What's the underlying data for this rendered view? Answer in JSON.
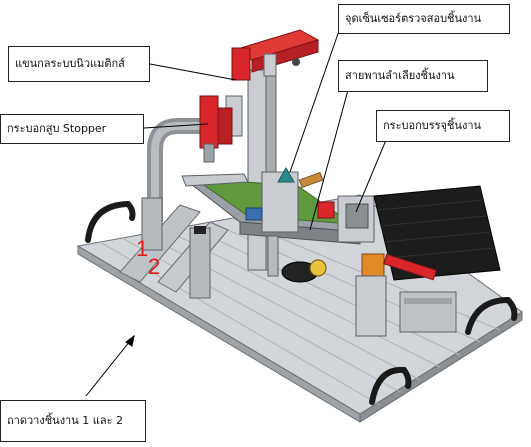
{
  "labels": {
    "pneumatic_arm": "แขนกลระบบนิวแมติกส์",
    "stopper_cylinder": "กระบอกสูบ Stopper",
    "sensor_point": "จุดเซ็นเซอร์ตรวจสอบชิ้นงาน",
    "conveyor_belt": "สายพานลำเลียงชิ้นงาน",
    "storage_cylinder": "กระบอกบรรจุชิ้นงาน",
    "workpiece_tray": "ถาดวางชิ้นงาน 1 และ 2"
  },
  "markers": {
    "one": "1",
    "two": "2"
  },
  "colors": {
    "red_part": "#d8262b",
    "frame_gray": "#c9ccd0",
    "belt_green": "#5f9a3e",
    "dark_panel": "#1c1c1c",
    "marker_red": "#e01b1b"
  }
}
